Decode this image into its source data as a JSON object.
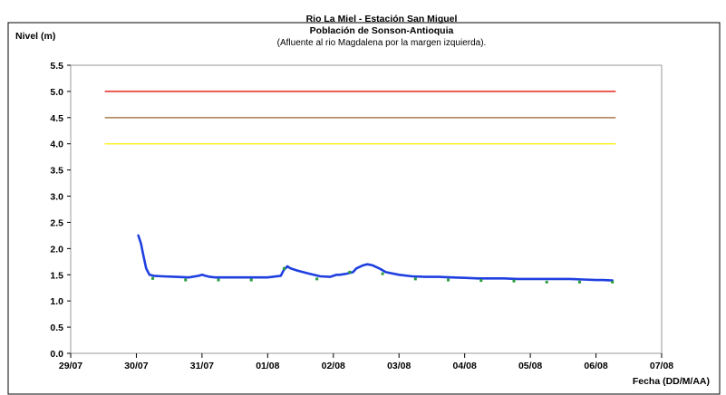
{
  "chart_data": {
    "type": "line",
    "title_lines": [
      "Rio La Miel  - Estación San Miguel",
      "Población de Sonson-Antioquia"
    ],
    "subtitle": "(Afluente al rio Magdalena por la margen izquierda).",
    "ylabel": "Nivel (m)",
    "xlabel": "Fecha (DD/M/AA)",
    "ylim": [
      0.0,
      5.5
    ],
    "yticks": [
      "0.0",
      "0.5",
      "1.0",
      "1.5",
      "2.0",
      "2.5",
      "3.0",
      "3.5",
      "4.0",
      "4.5",
      "5.0",
      "5.5"
    ],
    "xlim": [
      0,
      9
    ],
    "xtick_labels": [
      "29/07",
      "30/07",
      "31/07",
      "01/08",
      "02/08",
      "03/08",
      "04/08",
      "05/08",
      "06/08",
      "07/08"
    ],
    "grid": false,
    "threshold_lines": [
      {
        "value": 5.0,
        "x_range": [
          0.52,
          8.3
        ],
        "color": "#e8251e"
      },
      {
        "value": 4.5,
        "x_range": [
          0.52,
          8.3
        ],
        "color": "#a67c52"
      },
      {
        "value": 4.0,
        "x_range": [
          0.52,
          8.3
        ],
        "color": "#ffef2e"
      }
    ],
    "series": [
      {
        "color": "#1f3fe0",
        "x": [
          1.03,
          1.07,
          1.11,
          1.15,
          1.2,
          1.26,
          1.4,
          1.6,
          1.8,
          1.95,
          2.0,
          2.05,
          2.12,
          2.2,
          2.4,
          2.6,
          2.8,
          3.0,
          3.2,
          3.25,
          3.3,
          3.35,
          3.45,
          3.6,
          3.8,
          3.95,
          4.05,
          4.1,
          4.2,
          4.3,
          4.35,
          4.45,
          4.52,
          4.6,
          4.7,
          4.8,
          5.0,
          5.2,
          5.4,
          5.6,
          5.8,
          6.0,
          6.2,
          6.4,
          6.6,
          6.8,
          7.0,
          7.2,
          7.4,
          7.6,
          7.8,
          8.0,
          8.1,
          8.25
        ],
        "y": [
          2.25,
          2.1,
          1.85,
          1.62,
          1.5,
          1.48,
          1.47,
          1.46,
          1.45,
          1.48,
          1.5,
          1.48,
          1.46,
          1.45,
          1.45,
          1.45,
          1.45,
          1.45,
          1.48,
          1.6,
          1.66,
          1.62,
          1.58,
          1.53,
          1.47,
          1.46,
          1.5,
          1.5,
          1.52,
          1.55,
          1.62,
          1.68,
          1.7,
          1.68,
          1.62,
          1.55,
          1.5,
          1.47,
          1.46,
          1.46,
          1.45,
          1.44,
          1.43,
          1.43,
          1.43,
          1.42,
          1.42,
          1.42,
          1.42,
          1.42,
          1.41,
          1.4,
          1.4,
          1.39
        ]
      },
      {
        "color": "#2a9d3a",
        "marker": "dot",
        "x": [
          1.25,
          1.75,
          2.25,
          2.75,
          3.25,
          3.75,
          4.25,
          4.75,
          5.25,
          5.75,
          6.25,
          6.75,
          7.25,
          7.75,
          8.25
        ],
        "y": [
          1.43,
          1.4,
          1.4,
          1.4,
          1.62,
          1.42,
          1.55,
          1.52,
          1.42,
          1.4,
          1.39,
          1.38,
          1.36,
          1.36,
          1.36
        ]
      }
    ]
  }
}
